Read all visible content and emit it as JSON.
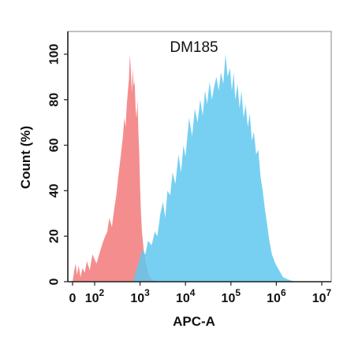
{
  "chart_data": {
    "type": "area",
    "title": "DM185",
    "xlabel": "APC-A",
    "ylabel": "Count  (%)",
    "x_scale": "log (biexponential, 0 at left)",
    "xlim": [
      0,
      10000000
    ],
    "ylim": [
      0,
      110
    ],
    "x_ticks": [
      {
        "value": 0,
        "label": "0",
        "exp": ""
      },
      {
        "value": 100,
        "label": "10",
        "exp": "2"
      },
      {
        "value": 1000,
        "label": "10",
        "exp": "3"
      },
      {
        "value": 10000,
        "label": "10",
        "exp": "4"
      },
      {
        "value": 100000,
        "label": "10",
        "exp": "5"
      },
      {
        "value": 1000000,
        "label": "10",
        "exp": "6"
      },
      {
        "value": 10000000,
        "label": "10",
        "exp": "7"
      }
    ],
    "y_ticks": [
      0,
      20,
      40,
      60,
      80,
      100
    ],
    "grid": false,
    "legend": "none",
    "series": [
      {
        "color": "#f27a7a",
        "opacity": 0.85,
        "points": [
          [
            0,
            0
          ],
          [
            8,
            5
          ],
          [
            14,
            8
          ],
          [
            20,
            3
          ],
          [
            28,
            7
          ],
          [
            36,
            2
          ],
          [
            45,
            6
          ],
          [
            55,
            4
          ],
          [
            65,
            9
          ],
          [
            78,
            5
          ],
          [
            90,
            12
          ],
          [
            110,
            8
          ],
          [
            130,
            13
          ],
          [
            150,
            17
          ],
          [
            170,
            20
          ],
          [
            190,
            22
          ],
          [
            210,
            28
          ],
          [
            240,
            24
          ],
          [
            270,
            32
          ],
          [
            300,
            38
          ],
          [
            330,
            46
          ],
          [
            360,
            52
          ],
          [
            390,
            58
          ],
          [
            420,
            64
          ],
          [
            450,
            72
          ],
          [
            480,
            68
          ],
          [
            510,
            78
          ],
          [
            540,
            84
          ],
          [
            570,
            89
          ],
          [
            600,
            100
          ],
          [
            630,
            92
          ],
          [
            660,
            83
          ],
          [
            690,
            94
          ],
          [
            720,
            86
          ],
          [
            760,
            88
          ],
          [
            800,
            76
          ],
          [
            840,
            72
          ],
          [
            880,
            80
          ],
          [
            920,
            66
          ],
          [
            960,
            56
          ],
          [
            1000,
            42
          ],
          [
            1050,
            30
          ],
          [
            1100,
            22
          ],
          [
            1200,
            14
          ],
          [
            1350,
            8
          ],
          [
            1550,
            3
          ],
          [
            1800,
            1
          ],
          [
            2200,
            0
          ]
        ]
      },
      {
        "color": "#5fc8ee",
        "opacity": 0.85,
        "points": [
          [
            700,
            0
          ],
          [
            800,
            4
          ],
          [
            950,
            9
          ],
          [
            1100,
            14
          ],
          [
            1300,
            12
          ],
          [
            1500,
            18
          ],
          [
            1800,
            16
          ],
          [
            2100,
            22
          ],
          [
            2400,
            20
          ],
          [
            2800,
            30
          ],
          [
            3200,
            35
          ],
          [
            3600,
            28
          ],
          [
            4000,
            40
          ],
          [
            4600,
            38
          ],
          [
            5200,
            48
          ],
          [
            6000,
            43
          ],
          [
            7000,
            56
          ],
          [
            8000,
            48
          ],
          [
            9000,
            60
          ],
          [
            10000,
            55
          ],
          [
            12000,
            72
          ],
          [
            14000,
            64
          ],
          [
            16000,
            76
          ],
          [
            18500,
            70
          ],
          [
            21000,
            80
          ],
          [
            24000,
            73
          ],
          [
            27000,
            84
          ],
          [
            30000,
            78
          ],
          [
            34000,
            88
          ],
          [
            38000,
            80
          ],
          [
            43000,
            86
          ],
          [
            48000,
            90
          ],
          [
            54000,
            84
          ],
          [
            60000,
            92
          ],
          [
            68000,
            87
          ],
          [
            76000,
            100
          ],
          [
            85000,
            90
          ],
          [
            95000,
            94
          ],
          [
            105000,
            84
          ],
          [
            115000,
            92
          ],
          [
            125000,
            80
          ],
          [
            140000,
            87
          ],
          [
            155000,
            76
          ],
          [
            170000,
            84
          ],
          [
            190000,
            72
          ],
          [
            210000,
            78
          ],
          [
            235000,
            68
          ],
          [
            260000,
            74
          ],
          [
            290000,
            62
          ],
          [
            320000,
            66
          ],
          [
            360000,
            56
          ],
          [
            400000,
            58
          ],
          [
            450000,
            46
          ],
          [
            500000,
            40
          ],
          [
            560000,
            32
          ],
          [
            620000,
            26
          ],
          [
            700000,
            18
          ],
          [
            800000,
            12
          ],
          [
            950000,
            8
          ],
          [
            1150000,
            5
          ],
          [
            1400000,
            2
          ],
          [
            1800000,
            1
          ],
          [
            2500000,
            0
          ]
        ]
      }
    ]
  }
}
